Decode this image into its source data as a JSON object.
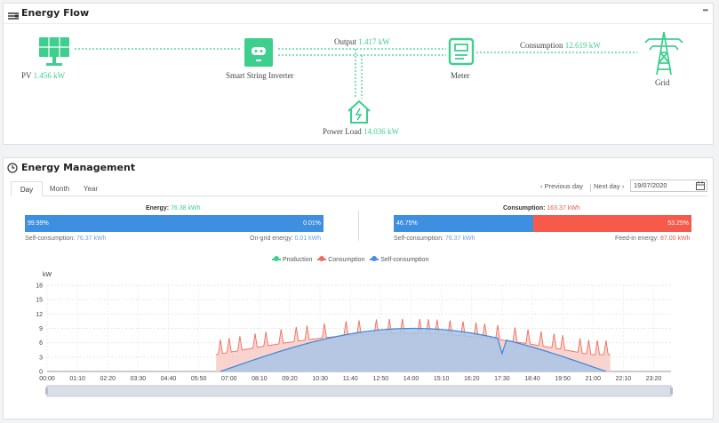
{
  "energy_flow": {
    "title": "Energy Flow",
    "more": "•••",
    "pv": {
      "label": "PV",
      "value": "1.456 kW"
    },
    "inverter": {
      "label": "Smart String Inverter"
    },
    "output": {
      "label": "Output",
      "value": "1.417 kW"
    },
    "meter": {
      "label": "Meter"
    },
    "consumption": {
      "label": "Consumption",
      "value": "12.619 kW"
    },
    "grid": {
      "label": "Grid"
    },
    "load": {
      "label": "Power Load",
      "value": "14.036 kW"
    }
  },
  "energy_management": {
    "title": "Energy Management",
    "tabs": [
      "Day",
      "Month",
      "Year"
    ],
    "prev_day": "Previous day",
    "next_day": "Next day",
    "date": "19/07/2020",
    "energy": {
      "label": "Energy:",
      "value": "76.38 kWh",
      "left_pct": "99.99%",
      "right_pct": "0.01%",
      "self_label": "Self-consumption:",
      "self_value": "76.37 kWh",
      "ongrid_label": "On-grid energy:",
      "ongrid_value": "0.01 kWh"
    },
    "consumption": {
      "label": "Consumption:",
      "value": "163.37 kWh",
      "left_pct": "46.75%",
      "right_pct": "53.25%",
      "self_label": "Self-consumption:",
      "self_value": "76.37 kWh",
      "feedin_label": "Feed-in energy:",
      "feedin_value": "87.00 kWh"
    },
    "progress": {
      "energy_self_fraction": 0.9999,
      "consumption_self_fraction": 0.4675
    }
  },
  "colors": {
    "blue": "#3f8fe0",
    "red": "#f55a4a",
    "green": "#3ecf8e",
    "production": "#3ecf8e",
    "consumption": "#ee6f60",
    "self": "#4a90d9"
  },
  "chart_data": {
    "type": "area",
    "ylabel": "kW",
    "ylim": [
      0,
      18
    ],
    "yticks": [
      "0",
      "3",
      "6",
      "9",
      "12",
      "15",
      "18"
    ],
    "xticks": [
      "00:00",
      "01:10",
      "02:20",
      "03:30",
      "04:40",
      "05:50",
      "07:00",
      "08:10",
      "09:20",
      "10:30",
      "11:40",
      "12:50",
      "14:00",
      "15:10",
      "16:20",
      "17:30",
      "18:40",
      "19:50",
      "21:00",
      "22:10",
      "23:20"
    ],
    "legend": [
      "Production",
      "Consumption",
      "Self-consumption"
    ],
    "series": [
      {
        "name": "Consumption",
        "x_minutes": [
          0
        ],
        "values": [
          0
        ]
      },
      {
        "name": "Self-consumption",
        "x_minutes": [
          0
        ],
        "values": [
          0
        ]
      }
    ]
  }
}
